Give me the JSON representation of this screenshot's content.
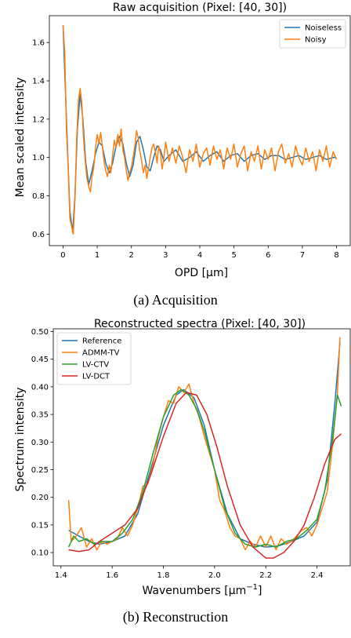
{
  "chart_data": [
    {
      "type": "line",
      "title": "Raw acquisition (Pixel: [40, 30])",
      "xlabel": "OPD [µm]",
      "ylabel": "Mean scaled intensity",
      "xlim": [
        -0.4,
        8.4
      ],
      "ylim": [
        0.54,
        1.74
      ],
      "xticks": [
        0,
        1,
        2,
        3,
        4,
        5,
        6,
        7,
        8
      ],
      "yticks": [
        0.6,
        0.8,
        1.0,
        1.2,
        1.4,
        1.6
      ],
      "ytick_labels": [
        "0.6",
        "0.8",
        "1.0",
        "1.2",
        "1.4",
        "1.6"
      ],
      "legend_placement": "top-right",
      "series": [
        {
          "name": "Noiseless",
          "color": "#1f77b4",
          "x": [
            0,
            0.1,
            0.2,
            0.28,
            0.35,
            0.42,
            0.5,
            0.58,
            0.66,
            0.75,
            0.85,
            0.95,
            1.05,
            1.15,
            1.25,
            1.35,
            1.45,
            1.55,
            1.65,
            1.75,
            1.85,
            1.95,
            2.05,
            2.15,
            2.25,
            2.35,
            2.45,
            2.55,
            2.65,
            2.75,
            2.85,
            2.95,
            3.1,
            3.3,
            3.5,
            3.7,
            3.9,
            4.1,
            4.3,
            4.5,
            4.7,
            4.9,
            5.1,
            5.3,
            5.5,
            5.7,
            5.9,
            6.1,
            6.3,
            6.5,
            6.7,
            6.9,
            7.1,
            7.3,
            7.5,
            7.7,
            7.9,
            8.0
          ],
          "y": [
            1.69,
            1.2,
            0.72,
            0.61,
            0.8,
            1.15,
            1.33,
            1.2,
            0.98,
            0.86,
            0.93,
            1.02,
            1.08,
            1.06,
            0.97,
            0.92,
            0.97,
            1.06,
            1.11,
            1.07,
            0.97,
            0.9,
            0.96,
            1.08,
            1.11,
            1.04,
            0.95,
            0.93,
            1.0,
            1.06,
            1.04,
            0.98,
            1.01,
            1.04,
            0.98,
            1.0,
            1.03,
            0.98,
            1.01,
            1.03,
            0.98,
            1.01,
            1.02,
            0.98,
            1.01,
            1.02,
            0.99,
            1.01,
            1.01,
            0.99,
            1.0,
            1.01,
            0.99,
            1.0,
            1.01,
            0.99,
            1.0,
            1.0
          ]
        },
        {
          "name": "Noisy",
          "color": "#ff7f0e",
          "x": [
            0,
            0.05,
            0.1,
            0.15,
            0.2,
            0.25,
            0.3,
            0.35,
            0.4,
            0.45,
            0.5,
            0.55,
            0.6,
            0.65,
            0.7,
            0.75,
            0.8,
            0.85,
            0.9,
            0.95,
            1.0,
            1.05,
            1.1,
            1.15,
            1.2,
            1.25,
            1.3,
            1.35,
            1.4,
            1.45,
            1.5,
            1.55,
            1.6,
            1.65,
            1.7,
            1.75,
            1.8,
            1.85,
            1.9,
            1.95,
            2.0,
            2.05,
            2.1,
            2.15,
            2.2,
            2.25,
            2.3,
            2.35,
            2.4,
            2.45,
            2.5,
            2.55,
            2.6,
            2.65,
            2.7,
            2.75,
            2.8,
            2.85,
            2.9,
            2.95,
            3.0,
            3.1,
            3.2,
            3.3,
            3.4,
            3.5,
            3.6,
            3.7,
            3.8,
            3.9,
            4.0,
            4.1,
            4.2,
            4.3,
            4.4,
            4.5,
            4.6,
            4.7,
            4.8,
            4.9,
            5.0,
            5.1,
            5.2,
            5.3,
            5.4,
            5.5,
            5.6,
            5.7,
            5.8,
            5.9,
            6.0,
            6.1,
            6.2,
            6.3,
            6.4,
            6.5,
            6.6,
            6.7,
            6.8,
            6.9,
            7.0,
            7.1,
            7.2,
            7.3,
            7.4,
            7.5,
            7.6,
            7.7,
            7.8,
            7.9,
            8.0
          ],
          "y": [
            1.69,
            1.55,
            1.15,
            0.95,
            0.68,
            0.64,
            0.6,
            0.78,
            1.1,
            1.3,
            1.36,
            1.28,
            1.1,
            0.98,
            0.89,
            0.85,
            0.82,
            0.9,
            0.95,
            1.05,
            1.12,
            1.07,
            1.13,
            1.06,
            0.98,
            0.93,
            0.9,
            0.96,
            0.92,
            1.01,
            1.09,
            1.05,
            1.12,
            1.06,
            1.15,
            1.04,
            1.0,
            0.93,
            0.88,
            0.92,
            0.95,
            1.0,
            1.06,
            1.14,
            1.1,
            1.03,
            0.98,
            0.92,
            0.96,
            0.89,
            0.94,
            1.0,
            1.05,
            1.07,
            1.03,
            0.97,
            1.06,
            1.02,
            0.94,
            1.0,
            1.08,
            0.98,
            1.05,
            0.97,
            1.06,
            1.0,
            0.92,
            1.04,
            0.98,
            1.07,
            0.95,
            1.02,
            1.05,
            0.96,
            1.06,
            0.99,
            1.04,
            0.94,
            1.05,
            0.99,
            1.07,
            0.95,
            1.02,
            1.06,
            0.93,
            1.03,
            0.98,
            1.06,
            0.94,
            1.04,
            0.99,
            1.05,
            0.93,
            1.03,
            1.07,
            0.97,
            1.02,
            0.95,
            1.06,
            1.0,
            0.96,
            1.05,
            0.98,
            1.03,
            0.93,
            1.04,
            0.98,
            1.06,
            0.95,
            1.03,
            0.99
          ]
        }
      ]
    },
    {
      "type": "line",
      "title": "Reconstructed spectra (Pixel: [40, 30])",
      "xlabel": "Wavenumbers [µm",
      "xlabel_sup": "−1",
      "xlabel_suffix": "]",
      "ylabel": "Spectrum intensity",
      "xlim": [
        1.37,
        2.53
      ],
      "ylim": [
        0.076,
        0.505
      ],
      "xticks": [
        1.4,
        1.6,
        1.8,
        2.0,
        2.2,
        2.4
      ],
      "xtick_labels": [
        "1.4",
        "1.6",
        "1.8",
        "2.0",
        "2.2",
        "2.4"
      ],
      "yticks": [
        0.1,
        0.15,
        0.2,
        0.25,
        0.3,
        0.35,
        0.4,
        0.45,
        0.5
      ],
      "ytick_labels": [
        "0.10",
        "0.15",
        "0.20",
        "0.25",
        "0.30",
        "0.35",
        "0.40",
        "0.45",
        "0.50"
      ],
      "legend_placement": "top-left",
      "series": [
        {
          "name": "Reference",
          "color": "#1f77b4",
          "x": [
            1.43,
            1.47,
            1.51,
            1.55,
            1.6,
            1.65,
            1.7,
            1.75,
            1.8,
            1.85,
            1.88,
            1.92,
            1.96,
            2.0,
            2.05,
            2.1,
            2.15,
            2.2,
            2.25,
            2.3,
            2.35,
            2.4,
            2.44,
            2.47,
            2.49
          ],
          "y": [
            0.14,
            0.13,
            0.12,
            0.115,
            0.12,
            0.13,
            0.17,
            0.25,
            0.33,
            0.385,
            0.395,
            0.38,
            0.33,
            0.25,
            0.17,
            0.125,
            0.115,
            0.11,
            0.112,
            0.12,
            0.13,
            0.155,
            0.23,
            0.37,
            0.48
          ]
        },
        {
          "name": "ADMM-TV",
          "color": "#ff7f0e",
          "x": [
            1.43,
            1.44,
            1.46,
            1.48,
            1.5,
            1.52,
            1.54,
            1.56,
            1.58,
            1.6,
            1.62,
            1.64,
            1.66,
            1.68,
            1.7,
            1.72,
            1.74,
            1.76,
            1.78,
            1.8,
            1.82,
            1.84,
            1.86,
            1.88,
            1.9,
            1.92,
            1.94,
            1.96,
            1.98,
            2.0,
            2.02,
            2.04,
            2.06,
            2.08,
            2.1,
            2.12,
            2.14,
            2.16,
            2.18,
            2.2,
            2.22,
            2.24,
            2.26,
            2.28,
            2.3,
            2.32,
            2.34,
            2.36,
            2.38,
            2.4,
            2.42,
            2.44,
            2.46,
            2.48,
            2.49
          ],
          "y": [
            0.195,
            0.12,
            0.13,
            0.145,
            0.11,
            0.125,
            0.105,
            0.12,
            0.115,
            0.12,
            0.125,
            0.145,
            0.13,
            0.15,
            0.18,
            0.22,
            0.225,
            0.26,
            0.31,
            0.345,
            0.375,
            0.37,
            0.4,
            0.39,
            0.405,
            0.37,
            0.345,
            0.31,
            0.28,
            0.25,
            0.195,
            0.175,
            0.145,
            0.13,
            0.125,
            0.105,
            0.12,
            0.11,
            0.13,
            0.11,
            0.13,
            0.105,
            0.125,
            0.115,
            0.12,
            0.13,
            0.14,
            0.145,
            0.13,
            0.15,
            0.18,
            0.21,
            0.29,
            0.39,
            0.49
          ]
        },
        {
          "name": "LV-CTV",
          "color": "#2ca02c",
          "x": [
            1.43,
            1.45,
            1.47,
            1.5,
            1.53,
            1.56,
            1.6,
            1.64,
            1.68,
            1.72,
            1.76,
            1.8,
            1.84,
            1.87,
            1.9,
            1.93,
            1.96,
            2.0,
            2.04,
            2.08,
            2.12,
            2.16,
            2.2,
            2.24,
            2.28,
            2.32,
            2.36,
            2.4,
            2.43,
            2.46,
            2.48,
            2.495
          ],
          "y": [
            0.11,
            0.13,
            0.12,
            0.125,
            0.115,
            0.12,
            0.12,
            0.135,
            0.16,
            0.21,
            0.28,
            0.345,
            0.385,
            0.395,
            0.385,
            0.36,
            0.32,
            0.25,
            0.18,
            0.135,
            0.115,
            0.11,
            0.115,
            0.11,
            0.12,
            0.125,
            0.14,
            0.16,
            0.21,
            0.3,
            0.385,
            0.365
          ]
        },
        {
          "name": "LV-DCT",
          "color": "#d62728",
          "x": [
            1.43,
            1.47,
            1.51,
            1.55,
            1.6,
            1.65,
            1.7,
            1.75,
            1.8,
            1.85,
            1.89,
            1.93,
            1.97,
            2.01,
            2.05,
            2.1,
            2.15,
            2.2,
            2.23,
            2.27,
            2.31,
            2.35,
            2.39,
            2.43,
            2.47,
            2.495
          ],
          "y": [
            0.105,
            0.102,
            0.105,
            0.12,
            0.135,
            0.15,
            0.18,
            0.24,
            0.31,
            0.37,
            0.39,
            0.385,
            0.35,
            0.29,
            0.22,
            0.15,
            0.11,
            0.09,
            0.09,
            0.1,
            0.12,
            0.15,
            0.2,
            0.26,
            0.305,
            0.315
          ]
        }
      ]
    }
  ],
  "captions": {
    "acquisition": "(a) Acquisition",
    "reconstruction": "(b) Reconstruction"
  }
}
